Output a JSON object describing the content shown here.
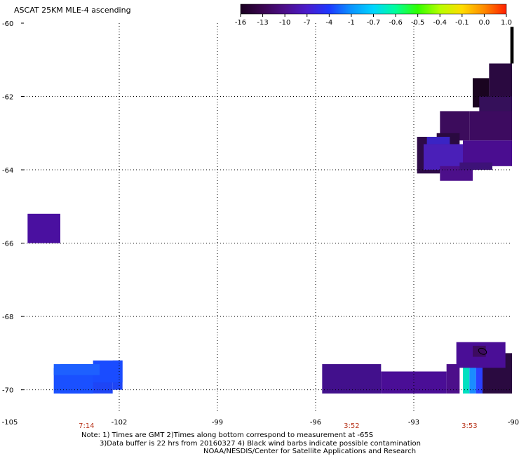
{
  "title": "ASCAT 25KM MLE-4 ascending",
  "notes": {
    "line1": "Note: 1) Times are GMT 2)Times along bottom correspond to measurement at -65S",
    "line2": "3)Data buffer is 22 hrs from 20160327 4) Black wind barbs indicate possible contamination",
    "line3": "NOAA/NESDIS/Center for Satellite Applications and Research"
  },
  "chart_data": {
    "type": "heatmap",
    "title": "ASCAT 25KM MLE-4 ascending",
    "xlim": [
      -105,
      -90
    ],
    "ylim": [
      -70.6,
      -60
    ],
    "x_ticks": [
      "-105",
      "-102",
      "-99",
      "-96",
      "-93",
      "-90"
    ],
    "y_ticks": [
      "-60",
      "-62",
      "-64",
      "-66",
      "-68",
      "-70"
    ],
    "grid": true,
    "colorbar": {
      "ticks": [
        "-16",
        "-13",
        "-10",
        "-7",
        "-4",
        "-1",
        "-0.7",
        "-0.6",
        "-0.5",
        "-0.4",
        "-0.1",
        "0.0",
        "1.0"
      ],
      "colors": [
        "#1a0020",
        "#3a0550",
        "#4c0f8a",
        "#4a1ccc",
        "#1e38ff",
        "#0b95ff",
        "#00d5ff",
        "#00ff9a",
        "#32ff00",
        "#b7ff00",
        "#ffdc00",
        "#ff8a00",
        "#ff1e00"
      ],
      "location": "top-right"
    },
    "time_labels": [
      {
        "lon": -103.0,
        "text": "7:14"
      },
      {
        "lon": -94.9,
        "text": "3:52"
      },
      {
        "lon": -91.3,
        "text": "3:53"
      }
    ],
    "cells": [
      {
        "lon": [
          -90.05,
          -89.95
        ],
        "lat": [
          -61.1,
          -60.1
        ],
        "color": "#000000"
      },
      {
        "lon": [
          -90.7,
          -90.0
        ],
        "lat": [
          -62.2,
          -61.1
        ],
        "color": "#2a0940"
      },
      {
        "lon": [
          -91.2,
          -90.7
        ],
        "lat": [
          -62.3,
          -61.5
        ],
        "color": "#1a0420"
      },
      {
        "lon": [
          -91.0,
          -90.0
        ],
        "lat": [
          -62.6,
          -62.0
        ],
        "color": "#35105a"
      },
      {
        "lon": [
          -92.2,
          -91.3
        ],
        "lat": [
          -63.2,
          -62.4
        ],
        "color": "#3c0c5c"
      },
      {
        "lon": [
          -91.3,
          -90.0
        ],
        "lat": [
          -63.2,
          -62.4
        ],
        "color": "#3d0b60"
      },
      {
        "lon": [
          -92.3,
          -91.6
        ],
        "lat": [
          -63.5,
          -63.0
        ],
        "color": "#2a0a40"
      },
      {
        "lon": [
          -92.9,
          -92.2
        ],
        "lat": [
          -64.1,
          -63.1
        ],
        "color": "#2e0b48"
      },
      {
        "lon": [
          -92.6,
          -91.9
        ],
        "lat": [
          -63.3,
          -63.1
        ],
        "color": "#3a24c4"
      },
      {
        "lon": [
          -92.7,
          -91.5
        ],
        "lat": [
          -64.0,
          -63.3
        ],
        "color": "#4a1fb8"
      },
      {
        "lon": [
          -91.5,
          -90.0
        ],
        "lat": [
          -63.9,
          -63.2
        ],
        "color": "#4a0d90"
      },
      {
        "lon": [
          -92.2,
          -91.2
        ],
        "lat": [
          -64.3,
          -63.9
        ],
        "color": "#4c0f8a"
      },
      {
        "lon": [
          -91.6,
          -90.6
        ],
        "lat": [
          -64.0,
          -63.8
        ],
        "color": "#3d1278"
      },
      {
        "lon": [
          -104.8,
          -103.8
        ],
        "lat": [
          -66.0,
          -65.2
        ],
        "color": "#4a10a0"
      },
      {
        "lon": [
          -103.8,
          -102.2
        ],
        "lat": [
          -70.1,
          -69.3
        ],
        "color": "#1e45f5"
      },
      {
        "lon": [
          -104.0,
          -102.8
        ],
        "lat": [
          -70.1,
          -69.4
        ],
        "color": "#1a50ff"
      },
      {
        "lon": [
          -102.2,
          -101.9
        ],
        "lat": [
          -70.0,
          -69.2
        ],
        "color": "#1e45f5"
      },
      {
        "lon": [
          -102.8,
          -101.9
        ],
        "lat": [
          -69.8,
          -69.2
        ],
        "color": "#1a4cff"
      },
      {
        "lon": [
          -104.0,
          -102.6
        ],
        "lat": [
          -69.6,
          -69.3
        ],
        "color": "#1e60ff"
      },
      {
        "lon": [
          -95.8,
          -94.0
        ],
        "lat": [
          -70.1,
          -69.3
        ],
        "color": "#42108c"
      },
      {
        "lon": [
          -94.0,
          -92.0
        ],
        "lat": [
          -70.1,
          -69.5
        ],
        "color": "#4a0e96"
      },
      {
        "lon": [
          -92.0,
          -91.6
        ],
        "lat": [
          -70.1,
          -69.3
        ],
        "color": "#4c0f8a"
      },
      {
        "lon": [
          -91.5,
          -91.3
        ],
        "lat": [
          -70.1,
          -69.3
        ],
        "color": "#00e0c0"
      },
      {
        "lon": [
          -91.3,
          -91.1
        ],
        "lat": [
          -70.1,
          -69.3
        ],
        "color": "#1a8cff"
      },
      {
        "lon": [
          -91.1,
          -90.9
        ],
        "lat": [
          -70.1,
          -69.3
        ],
        "color": "#2a40ff"
      },
      {
        "lon": [
          -90.9,
          -90.0
        ],
        "lat": [
          -70.1,
          -69.0
        ],
        "color": "#2a0a40"
      },
      {
        "lon": [
          -91.7,
          -90.2
        ],
        "lat": [
          -69.4,
          -68.7
        ],
        "color": "#4a0e96"
      },
      {
        "lon": [
          -91.2,
          -90.8
        ],
        "lat": [
          -69.1,
          -68.8
        ],
        "color": "#3d0b60"
      }
    ]
  }
}
